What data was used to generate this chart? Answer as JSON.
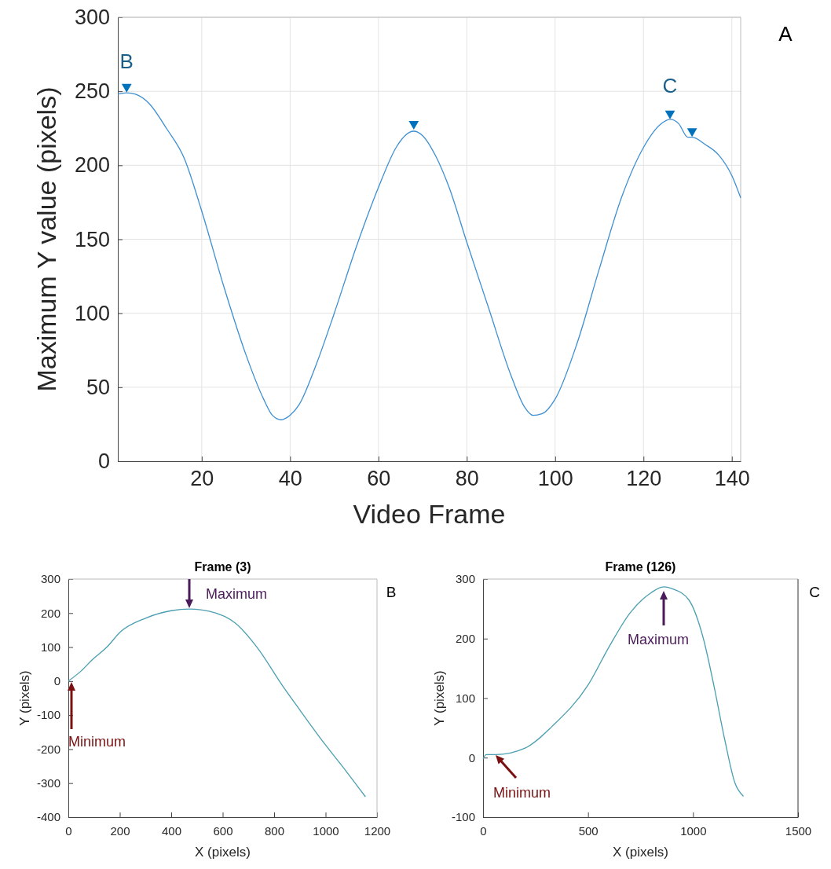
{
  "chart_data": [
    {
      "type": "line",
      "xlabel": "Video Frame",
      "ylabel": "Maximum Y value (pixels)",
      "xlim": [
        1,
        142
      ],
      "ylim": [
        0,
        300
      ],
      "xticks": [
        20,
        40,
        60,
        80,
        100,
        120,
        140
      ],
      "yticks": [
        0,
        50,
        100,
        150,
        200,
        250,
        300
      ],
      "grid": true,
      "series": [
        {
          "type": "line",
          "color": "#3d8fd1",
          "x": [
            1,
            3,
            5,
            8,
            12,
            16,
            20,
            25,
            30,
            34,
            36,
            38,
            40,
            42,
            46,
            50,
            55,
            60,
            64,
            66,
            68,
            70,
            73,
            76,
            80,
            85,
            90,
            93,
            95,
            97,
            100,
            105,
            110,
            115,
            120,
            124,
            126,
            128,
            130,
            131,
            134,
            137,
            140,
            142
          ],
          "values": [
            248,
            249,
            248,
            242,
            225,
            205,
            169,
            118,
            72,
            42,
            31,
            28,
            31,
            38,
            66,
            100,
            145,
            185,
            212,
            220,
            223,
            220,
            206,
            185,
            148,
            103,
            58,
            37,
            31,
            32,
            42,
            80,
            130,
            178,
            212,
            228,
            231,
            228,
            219,
            219,
            214,
            207,
            193,
            178
          ]
        },
        {
          "type": "scatter",
          "marker": "triangle",
          "color": "#0072bd",
          "x": [
            3,
            68,
            126,
            131
          ],
          "values": [
            253,
            228,
            235,
            223
          ]
        }
      ],
      "annotations": [
        {
          "text": "B",
          "x": 3,
          "y": 253
        },
        {
          "text": "C",
          "x": 126,
          "y": 235
        },
        "A"
      ]
    },
    {
      "type": "line",
      "title": "Frame (3)",
      "xlabel": "X (pixels)",
      "ylabel": "Y (pixels)",
      "xlim": [
        0,
        1200
      ],
      "ylim": [
        -400,
        300
      ],
      "xticks": [
        0,
        200,
        400,
        600,
        800,
        1000,
        1200
      ],
      "yticks": [
        -400,
        -300,
        -200,
        -100,
        0,
        100,
        200,
        300
      ],
      "series": [
        {
          "type": "line",
          "color": "#4a9fb0",
          "x": [
            0,
            50,
            92,
            150,
            203,
            300,
            400,
            470,
            550,
            650,
            733,
            834,
            900,
            997,
            1080,
            1155
          ],
          "values": [
            0,
            30,
            62,
            100,
            145,
            185,
            207,
            212,
            205,
            170,
            100,
            -15,
            -85,
            -185,
            -265,
            -340
          ]
        }
      ],
      "annotations": [
        "Maximum",
        "Minimum",
        "B"
      ]
    },
    {
      "type": "line",
      "title": "Frame (126)",
      "xlabel": "X (pixels)",
      "ylabel": "Y (pixels)",
      "xlim": [
        0,
        1500
      ],
      "ylim": [
        -100,
        300
      ],
      "xticks": [
        0,
        500,
        1000,
        1500
      ],
      "yticks": [
        -100,
        0,
        100,
        200,
        300
      ],
      "series": [
        {
          "type": "line",
          "color": "#4a9fb0",
          "x": [
            0,
            15,
            60,
            200,
            330,
            500,
            600,
            700,
            800,
            860,
            900,
            980,
            1050,
            1100,
            1150,
            1200,
            1240
          ],
          "values": [
            -2,
            5,
            5,
            16,
            53,
            122,
            186,
            243,
            277,
            287,
            284,
            265,
            199,
            120,
            32,
            -43,
            -65
          ]
        }
      ],
      "annotations": [
        "Maximum",
        "Minimum",
        "C"
      ]
    }
  ]
}
